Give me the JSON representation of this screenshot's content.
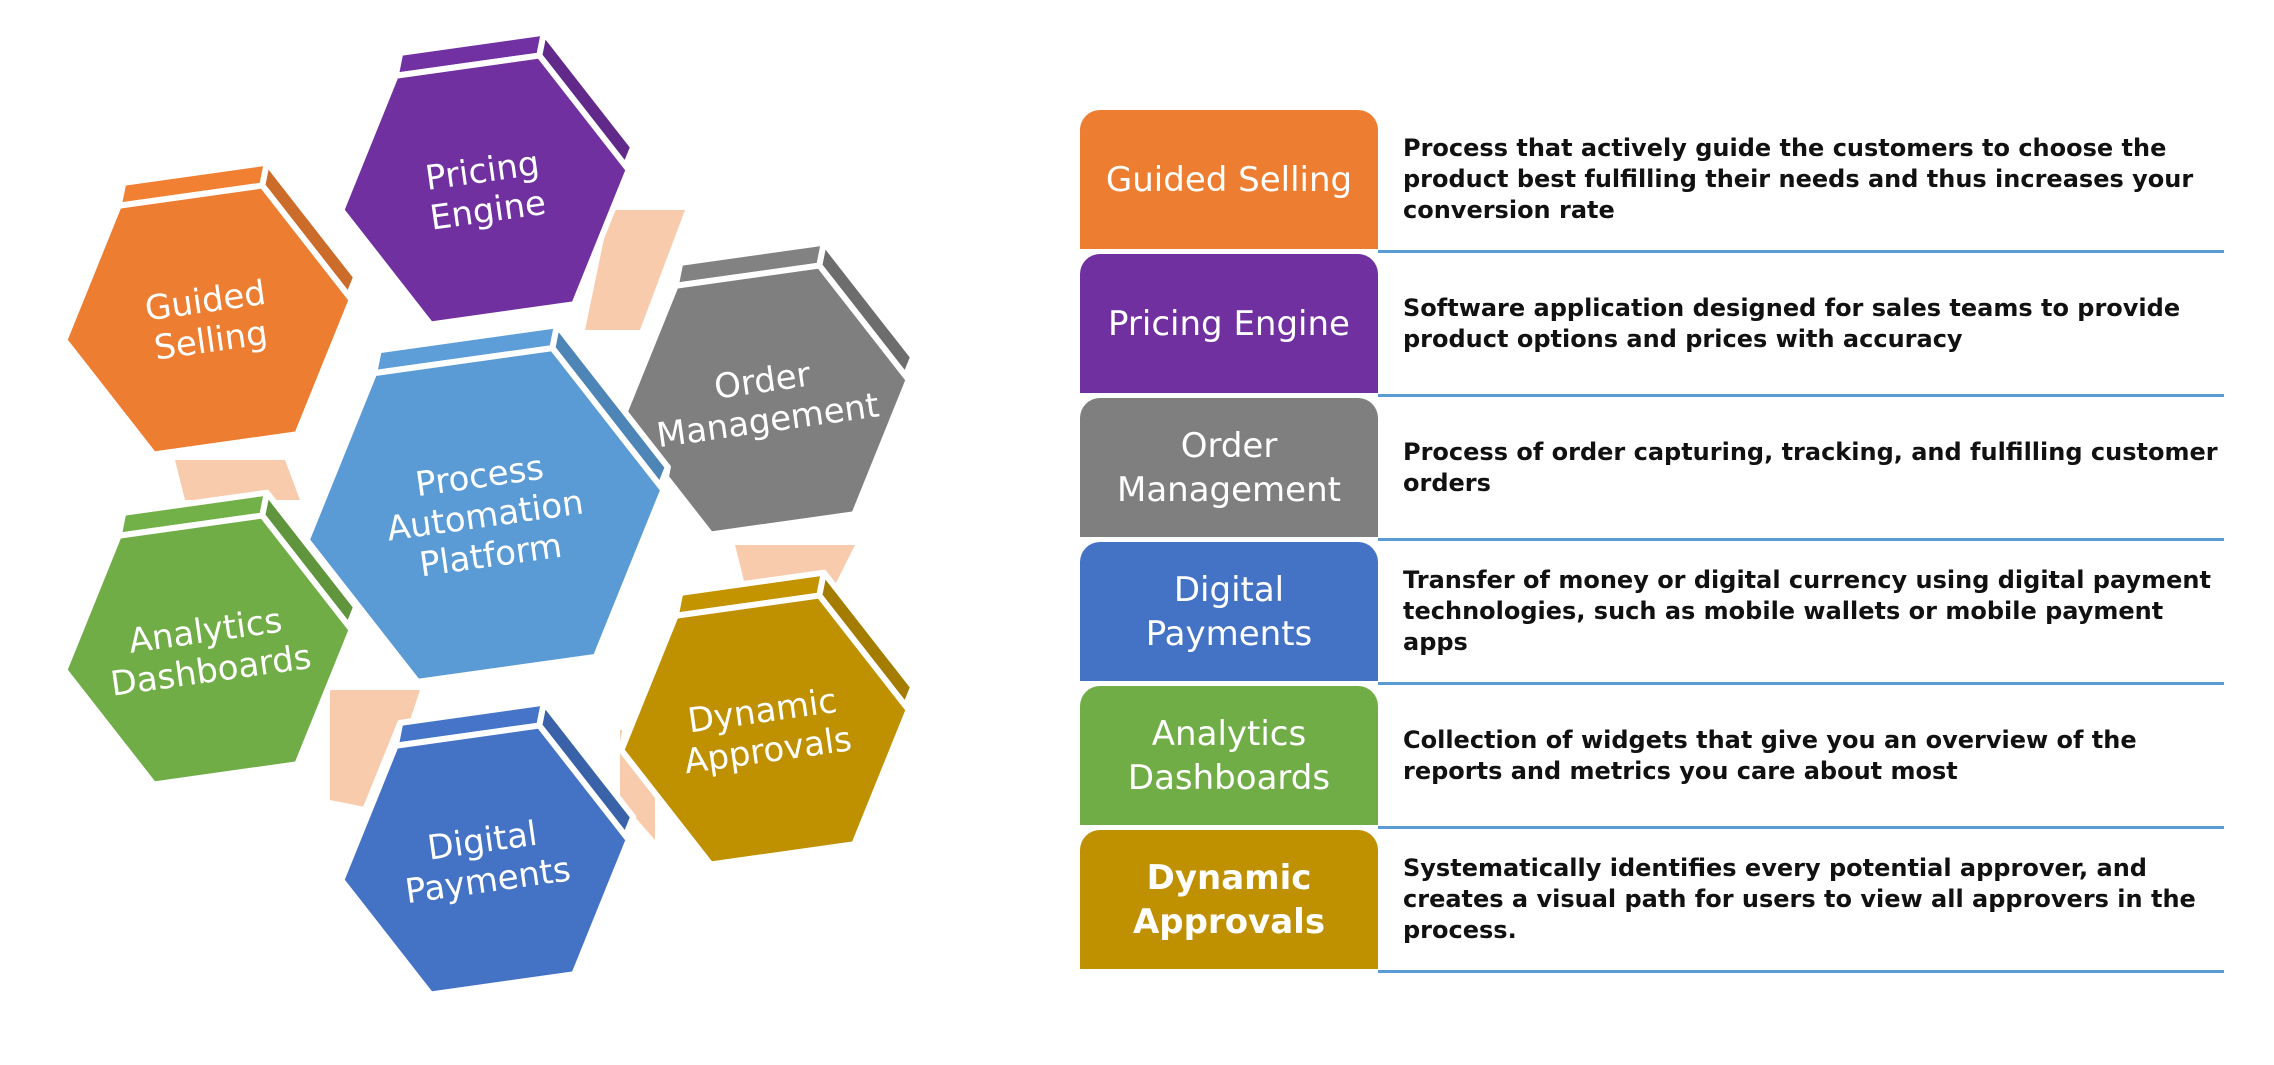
{
  "hexagons": [
    {
      "key": "guided-selling",
      "lines": [
        "Guided",
        "Selling"
      ],
      "color": "#ed7d31"
    },
    {
      "key": "pricing-engine",
      "lines": [
        "Pricing",
        "Engine"
      ],
      "color": "#7030a0"
    },
    {
      "key": "order-management",
      "lines": [
        "Order",
        "Management"
      ],
      "color": "#7f7f7f"
    },
    {
      "key": "process-automation-platform",
      "lines": [
        "Process",
        "Automation",
        "Platform"
      ],
      "color": "#5b9bd5"
    },
    {
      "key": "analytics-dashboards",
      "lines": [
        "Analytics",
        "Dashboards"
      ],
      "color": "#70ad47"
    },
    {
      "key": "dynamic-approvals",
      "lines": [
        "Dynamic",
        "Approvals"
      ],
      "color": "#bf9000"
    },
    {
      "key": "digital-payments",
      "lines": [
        "Digital",
        "Payments"
      ],
      "color": "#4472c4"
    }
  ],
  "legend": [
    {
      "lines": [
        "Guided Selling"
      ],
      "color": "#ed7d31",
      "description": "Process that actively guide the customers to choose the product best fulfilling their needs and thus increases your conversion rate"
    },
    {
      "lines": [
        "Pricing Engine"
      ],
      "color": "#7030a0",
      "description": "Software application designed for sales teams to provide product options and prices with accuracy"
    },
    {
      "lines": [
        "Order",
        "Management"
      ],
      "color": "#7f7f7f",
      "description": "Process of order capturing, tracking, and fulfilling customer orders"
    },
    {
      "lines": [
        "Digital",
        "Payments"
      ],
      "color": "#4472c4",
      "description": "Transfer of money or digital currency using digital payment technologies, such as mobile wallets or mobile payment apps"
    },
    {
      "lines": [
        "Analytics",
        "Dashboards"
      ],
      "color": "#70ad47",
      "description": "Collection of widgets that give you an overview of the reports and metrics you care about most"
    },
    {
      "lines": [
        "Dynamic",
        "Approvals"
      ],
      "color": "#bf9000",
      "description": "Systematically identifies every potential approver, and creates a visual path for users to view all approvers in the process."
    }
  ],
  "colors": {
    "divider": "#5b9bd5",
    "connector": "#f8cbad"
  }
}
